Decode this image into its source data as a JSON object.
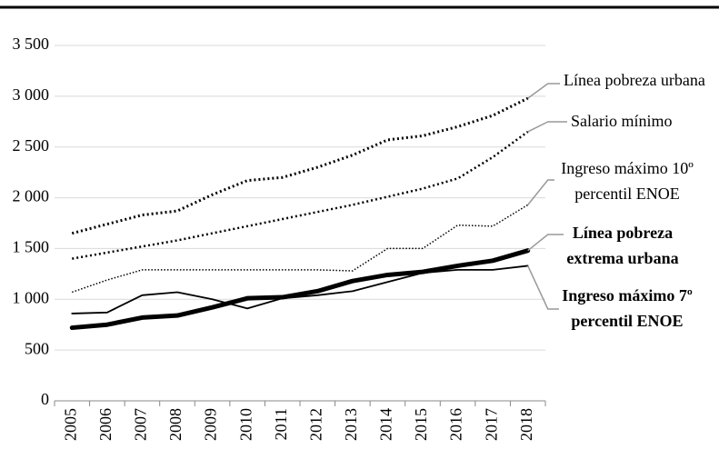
{
  "chart_data": {
    "type": "line",
    "categories": [
      "2005",
      "2006",
      "2007",
      "2008",
      "2009",
      "2010",
      "2011",
      "2012",
      "2013",
      "2014",
      "2015",
      "2016",
      "2017",
      "2018"
    ],
    "ylim": [
      0,
      3500
    ],
    "yticks": [
      0,
      500,
      {
        "value": 1000,
        "label": "1 000"
      },
      {
        "value": 1500,
        "label": "1 500"
      },
      {
        "value": 2000,
        "label": "2 000"
      },
      {
        "value": 2500,
        "label": "2 500"
      },
      {
        "value": 3000,
        "label": "3 000"
      },
      {
        "value": 3500,
        "label": "3 500"
      }
    ],
    "grid": true,
    "series": [
      {
        "name": "Línea pobreza urbana",
        "color": "#000000",
        "line_style": "dotted",
        "line_width": 3,
        "values": [
          1650,
          1740,
          1830,
          1870,
          2030,
          2170,
          2200,
          2300,
          2420,
          2570,
          2610,
          2700,
          2810,
          2980
        ]
      },
      {
        "name": "Salario mínimo",
        "color": "#000000",
        "line_style": "dotted",
        "line_width": 2.5,
        "values": [
          1400,
          1460,
          1520,
          1580,
          1650,
          1720,
          1790,
          1860,
          1930,
          2010,
          2090,
          2190,
          2400,
          2650
        ]
      },
      {
        "name": "Ingreso máximo 10º percentil ENOE",
        "color": "#000000",
        "line_style": "fine-dotted",
        "line_width": 1.5,
        "values": [
          1070,
          1190,
          1290,
          1290,
          1290,
          1290,
          1290,
          1290,
          1280,
          1500,
          1500,
          1730,
          1720,
          1930
        ]
      },
      {
        "name": "Línea pobreza extrema urbana",
        "color": "#000000",
        "line_style": "solid",
        "line_width": 5,
        "bold_label": true,
        "values": [
          720,
          750,
          820,
          840,
          920,
          1010,
          1020,
          1080,
          1180,
          1240,
          1270,
          1330,
          1380,
          1480
        ]
      },
      {
        "name": "Ingreso máximo 7º percentil ENOE",
        "color": "#000000",
        "line_style": "solid",
        "line_width": 1.8,
        "bold_label": true,
        "values": [
          860,
          870,
          1040,
          1070,
          1000,
          910,
          1010,
          1040,
          1080,
          1170,
          1260,
          1290,
          1290,
          1330
        ]
      }
    ]
  }
}
